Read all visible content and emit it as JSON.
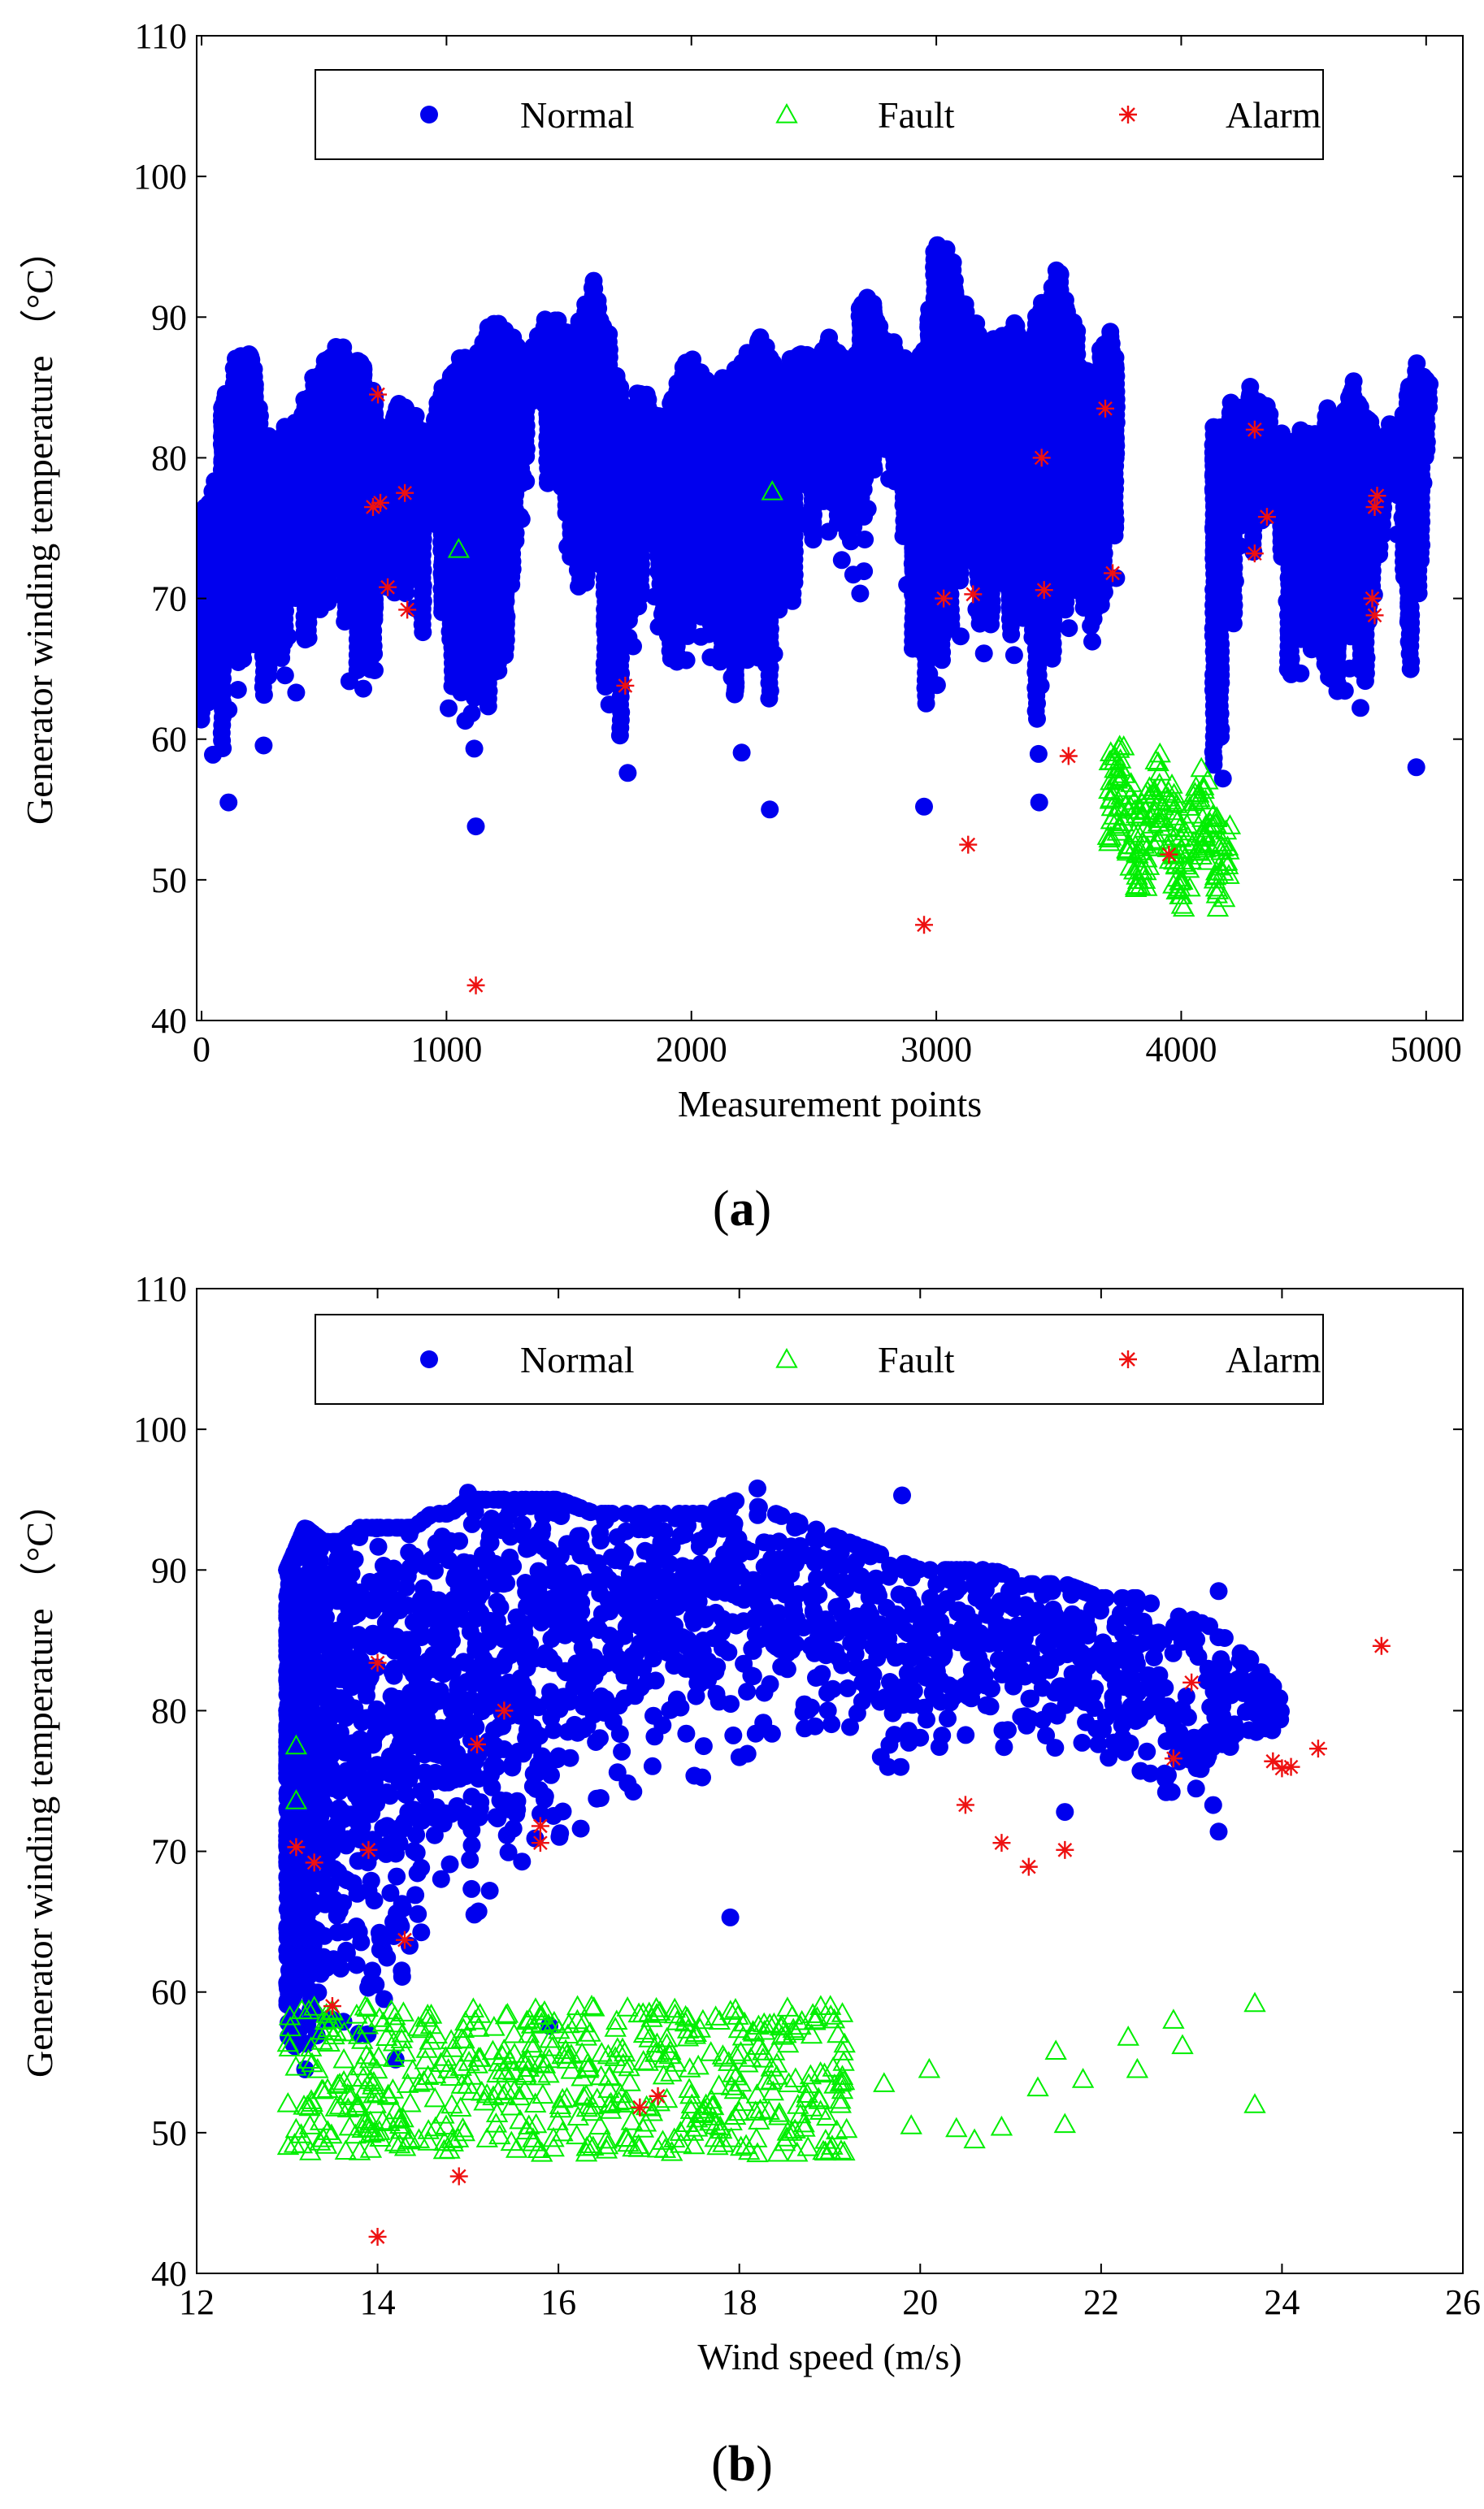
{
  "figure": {
    "caption_a": "a",
    "caption_b": "b"
  },
  "colors": {
    "normal": "#0000ee",
    "fault": "#00ee00",
    "alarm": "#ee1111",
    "axis": "#000000"
  },
  "legend": [
    {
      "label": "Normal",
      "marker": "circle",
      "color": "#0000ee"
    },
    {
      "label": "Fault",
      "marker": "triangle",
      "color": "#00ee00"
    },
    {
      "label": "Alarm",
      "marker": "asterisk",
      "color": "#ee1111"
    }
  ],
  "chart_data": [
    {
      "id": "a",
      "type": "scatter",
      "title": "",
      "xlabel": "Measurement points",
      "ylabel": "Generator winding temperature （°C）",
      "xlim": [
        -20,
        5150
      ],
      "ylim": [
        40,
        110
      ],
      "xticks": [
        0,
        1000,
        2000,
        3000,
        4000,
        5000
      ],
      "yticks": [
        40,
        50,
        60,
        70,
        80,
        90,
        100,
        110
      ],
      "legend_position": "top",
      "normal_envelope": [
        [
          0,
          60,
          76
        ],
        [
          50,
          58,
          79
        ],
        [
          100,
          55,
          86
        ],
        [
          150,
          62,
          88
        ],
        [
          200,
          68,
          88
        ],
        [
          260,
          57,
          82
        ],
        [
          300,
          62,
          81
        ],
        [
          350,
          64,
          83
        ],
        [
          400,
          62,
          83
        ],
        [
          450,
          61,
          86
        ],
        [
          500,
          67,
          87
        ],
        [
          550,
          70,
          88
        ],
        [
          600,
          62,
          88
        ],
        [
          650,
          61,
          87
        ],
        [
          700,
          64,
          85
        ],
        [
          750,
          70,
          82
        ],
        [
          800,
          69,
          84
        ],
        [
          850,
          67,
          84
        ],
        [
          900,
          66,
          82
        ],
        [
          950,
          74,
          83
        ],
        [
          1000,
          62,
          86
        ],
        [
          1050,
          62,
          88
        ],
        [
          1100,
          54,
          87
        ],
        [
          1150,
          60,
          89
        ],
        [
          1200,
          60,
          90
        ],
        [
          1250,
          65,
          89
        ],
        [
          1300,
          72,
          88
        ],
        [
          1350,
          82,
          88
        ],
        [
          1400,
          76,
          90
        ],
        [
          1450,
          79,
          90
        ],
        [
          1500,
          70,
          89
        ],
        [
          1550,
          69,
          90
        ],
        [
          1600,
          70,
          93
        ],
        [
          1650,
          60,
          90
        ],
        [
          1700,
          57,
          86
        ],
        [
          1750,
          62,
          84
        ],
        [
          1800,
          68,
          85
        ],
        [
          1850,
          65,
          84
        ],
        [
          1900,
          64,
          83
        ],
        [
          1950,
          63,
          86
        ],
        [
          2000,
          66,
          88
        ],
        [
          2050,
          67,
          86
        ],
        [
          2100,
          62,
          86
        ],
        [
          2150,
          64,
          86
        ],
        [
          2200,
          58,
          87
        ],
        [
          2250,
          66,
          88
        ],
        [
          2300,
          55,
          89
        ],
        [
          2350,
          63,
          86
        ],
        [
          2400,
          65,
          87
        ],
        [
          2450,
          75,
          88
        ],
        [
          2500,
          72,
          87
        ],
        [
          2550,
          71,
          89
        ],
        [
          2600,
          73,
          88
        ],
        [
          2650,
          68,
          87
        ],
        [
          2700,
          70,
          92
        ],
        [
          2750,
          78,
          91
        ],
        [
          2800,
          79,
          89
        ],
        [
          2850,
          75,
          88
        ],
        [
          2900,
          64,
          87
        ],
        [
          2950,
          55,
          88
        ],
        [
          3000,
          63,
          96
        ],
        [
          3050,
          61,
          95
        ],
        [
          3100,
          64,
          92
        ],
        [
          3150,
          66,
          90
        ],
        [
          3200,
          62,
          88
        ],
        [
          3250,
          68,
          89
        ],
        [
          3300,
          63,
          90
        ],
        [
          3350,
          66,
          89
        ],
        [
          3400,
          56,
          90
        ],
        [
          3450,
          62,
          92
        ],
        [
          3500,
          64,
          94
        ],
        [
          3550,
          62,
          91
        ],
        [
          3600,
          66,
          87
        ],
        [
          3650,
          67,
          86
        ],
        [
          3700,
          68,
          90
        ],
        [
          3720,
          69,
          88
        ],
        [
          4150,
          57,
          82
        ],
        [
          4200,
          66,
          84
        ],
        [
          4250,
          72,
          84
        ],
        [
          4300,
          69,
          86
        ],
        [
          4350,
          73,
          84
        ],
        [
          4400,
          74,
          82
        ],
        [
          4450,
          59,
          81
        ],
        [
          4500,
          66,
          83
        ],
        [
          4550,
          64,
          82
        ],
        [
          4600,
          61,
          84
        ],
        [
          4650,
          62,
          83
        ],
        [
          4700,
          64,
          86
        ],
        [
          4750,
          60,
          84
        ],
        [
          4800,
          71,
          82
        ],
        [
          4850,
          78,
          83
        ],
        [
          4900,
          72,
          83
        ],
        [
          4950,
          58,
          87
        ],
        [
          5000,
          80,
          86
        ]
      ],
      "normal_outliers": [
        [
          1120,
          53.8
        ],
        [
          2320,
          55
        ],
        [
          2950,
          55.2
        ],
        [
          3420,
          55.5
        ],
        [
          4170,
          57.2
        ],
        [
          4960,
          58
        ],
        [
          1740,
          57.6
        ],
        [
          110,
          55.5
        ]
      ],
      "fault_cluster": {
        "x_range": [
          3700,
          4200
        ],
        "y_range": [
          48,
          59.5
        ],
        "count": 220
      },
      "fault_points": [
        [
          1050,
          73.5
        ],
        [
          2330,
          77.6
        ]
      ],
      "alarm_points": [
        [
          700,
          76.5
        ],
        [
          720,
          84.5
        ],
        [
          730,
          76.8
        ],
        [
          760,
          70.8
        ],
        [
          830,
          77.5
        ],
        [
          840,
          69.2
        ],
        [
          1120,
          42.5
        ],
        [
          1730,
          63.8
        ],
        [
          2950,
          46.8
        ],
        [
          3030,
          70
        ],
        [
          3130,
          52.5
        ],
        [
          3150,
          70.3
        ],
        [
          3430,
          80
        ],
        [
          3440,
          70.6
        ],
        [
          3540,
          58.8
        ],
        [
          3690,
          83.5
        ],
        [
          3720,
          71.8
        ],
        [
          3950,
          51.8
        ],
        [
          4300,
          82
        ],
        [
          4300,
          73.2
        ],
        [
          4350,
          75.8
        ],
        [
          4780,
          70
        ],
        [
          4790,
          68.8
        ],
        [
          4790,
          76.5
        ],
        [
          4800,
          77.3
        ]
      ]
    },
    {
      "id": "b",
      "type": "scatter",
      "title": "",
      "xlabel": "Wind speed (m/s)",
      "ylabel": "Generator winding temperature （°C）",
      "xlim": [
        12,
        26
      ],
      "ylim": [
        40,
        110
      ],
      "xticks": [
        12,
        14,
        16,
        18,
        20,
        22,
        24,
        26
      ],
      "yticks": [
        40,
        50,
        60,
        70,
        80,
        90,
        100,
        110
      ],
      "legend_position": "top",
      "normal_envelope": [
        [
          13.0,
          57,
          90
        ],
        [
          13.2,
          55,
          93
        ],
        [
          13.4,
          58,
          92
        ],
        [
          13.6,
          58,
          92
        ],
        [
          13.8,
          57,
          93
        ],
        [
          14.0,
          57,
          93
        ],
        [
          14.2,
          60,
          93
        ],
        [
          14.4,
          63,
          93
        ],
        [
          14.6,
          66,
          94
        ],
        [
          14.8,
          65,
          94
        ],
        [
          15.0,
          64,
          95
        ],
        [
          15.2,
          67,
          95
        ],
        [
          15.4,
          68,
          95
        ],
        [
          15.6,
          69,
          95
        ],
        [
          15.8,
          70,
          95
        ],
        [
          16.0,
          71,
          95
        ],
        [
          16.4,
          72,
          94
        ],
        [
          16.8,
          73,
          94
        ],
        [
          17.2,
          74,
          94
        ],
        [
          17.6,
          75,
          94
        ],
        [
          18.0,
          76,
          95
        ],
        [
          18.4,
          77,
          94
        ],
        [
          18.8,
          77,
          93
        ],
        [
          19.2,
          78,
          92
        ],
        [
          19.6,
          76,
          91
        ],
        [
          20.0,
          76,
          90
        ],
        [
          20.4,
          78,
          90
        ],
        [
          20.8,
          77,
          90
        ],
        [
          21.2,
          77,
          89
        ],
        [
          21.6,
          77,
          89
        ],
        [
          22.0,
          76,
          88
        ],
        [
          22.4,
          75,
          88
        ],
        [
          22.8,
          74,
          87
        ],
        [
          23.2,
          73,
          86
        ],
        [
          23.6,
          76,
          84
        ],
        [
          24.0,
          77,
          81
        ]
      ],
      "normal_outliers": [
        [
          17.9,
          65.3
        ],
        [
          15.9,
          57.6
        ],
        [
          13.2,
          54.5
        ],
        [
          14.2,
          55.2
        ],
        [
          23.3,
          71.4
        ],
        [
          23.3,
          88.5
        ],
        [
          21.6,
          72.8
        ],
        [
          19.8,
          95.3
        ],
        [
          18.2,
          95.8
        ],
        [
          15.0,
          95.5
        ]
      ],
      "fault_cluster": {
        "x_range": [
          13.0,
          19.2
        ],
        "y_range": [
          48.5,
          59
        ],
        "count": 520
      },
      "fault_points": [
        [
          13.1,
          77.5
        ],
        [
          13.1,
          73.6
        ],
        [
          19.6,
          53.5
        ],
        [
          19.9,
          50.5
        ],
        [
          20.1,
          54.5
        ],
        [
          20.4,
          50.3
        ],
        [
          20.6,
          49.5
        ],
        [
          20.9,
          50.4
        ],
        [
          21.3,
          53.2
        ],
        [
          21.5,
          55.8
        ],
        [
          21.6,
          50.6
        ],
        [
          21.8,
          53.8
        ],
        [
          22.3,
          56.8
        ],
        [
          22.4,
          54.5
        ],
        [
          22.9,
          56.2
        ],
        [
          22.8,
          58
        ],
        [
          23.7,
          59.2
        ],
        [
          23.7,
          52
        ]
      ],
      "alarm_points": [
        [
          13.1,
          70.3
        ],
        [
          13.3,
          69.2
        ],
        [
          13.5,
          59
        ],
        [
          13.9,
          70.1
        ],
        [
          14.0,
          83.4
        ],
        [
          14.0,
          42.6
        ],
        [
          14.3,
          63.7
        ],
        [
          14.9,
          46.9
        ],
        [
          15.1,
          77.6
        ],
        [
          15.4,
          80
        ],
        [
          15.8,
          70.6
        ],
        [
          15.8,
          71.8
        ],
        [
          16.9,
          51.8
        ],
        [
          17.1,
          52.6
        ],
        [
          20.5,
          73.3
        ],
        [
          20.9,
          70.6
        ],
        [
          21.2,
          68.9
        ],
        [
          21.6,
          70.1
        ],
        [
          22.8,
          76.6
        ],
        [
          23.0,
          82
        ],
        [
          23.9,
          76.4
        ],
        [
          24.0,
          75.9
        ],
        [
          24.1,
          76
        ],
        [
          24.4,
          77.3
        ],
        [
          25.1,
          84.6
        ]
      ]
    }
  ]
}
